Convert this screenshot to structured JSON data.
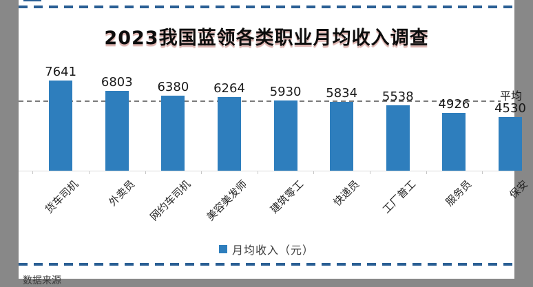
{
  "title": "2023我国蓝领各类职业月均收入调查",
  "chart_data": {
    "type": "bar",
    "title": "2023我国蓝领各类职业月均收入调查",
    "categories": [
      "货车司机",
      "外卖员",
      "网约车司机",
      "美容美发师",
      "建筑零工",
      "快递员",
      "工厂普工",
      "服务员",
      "保安"
    ],
    "values": [
      7641,
      6803,
      6380,
      6264,
      5930,
      5834,
      5538,
      4926,
      4530
    ],
    "series_name": "月均收入（元）",
    "xlabel": "",
    "ylabel": "",
    "ylim": [
      0,
      8500
    ],
    "grid": false,
    "legend_position": "bottom",
    "average_line": {
      "label": "平均",
      "value": 5900,
      "style": "dashed"
    },
    "bar_color": "#2E7EBD",
    "average_line_color": "#7A7A7A"
  },
  "legend": {
    "label": "月均收入（元）",
    "swatch_color": "#2E7EBD"
  },
  "decor": {
    "border_dash_color": "#2A5F94"
  },
  "footer": {
    "partial_text": "数据来源"
  }
}
